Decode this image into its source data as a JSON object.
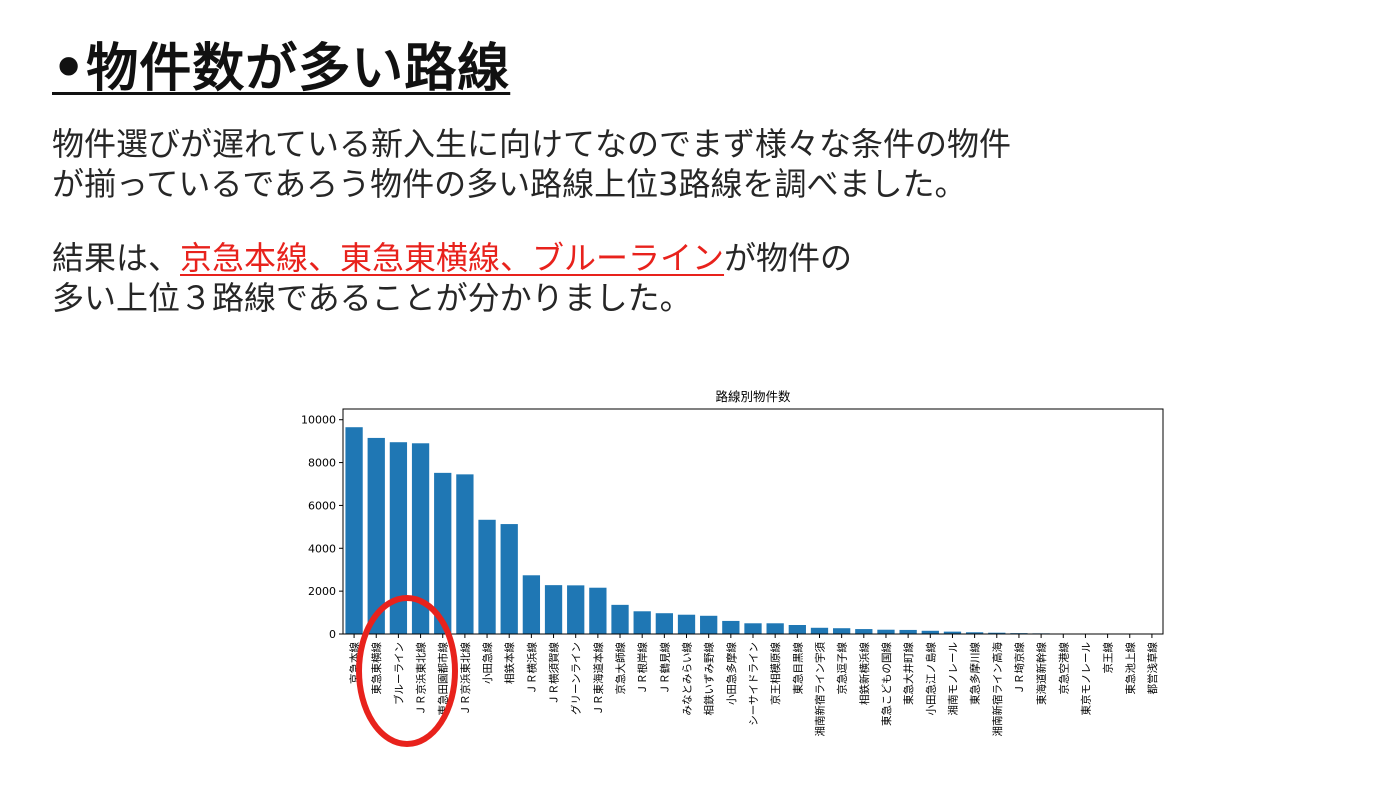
{
  "slide": {
    "title": "•物件数が多い路線",
    "paragraph1": {
      "line1": "物件選びが遅れている新入生に向けてなのでまず様々な条件の物件",
      "line2": "が揃っているであろう物件の多い路線上位3路線を調べました。"
    },
    "paragraph2": {
      "prefix": "結果は、",
      "highlight": "京急本線、東急東横線、ブルーライン",
      "suffix": "が物件の",
      "line2": "多い上位３路線であることが分かりました。"
    },
    "colors": {
      "highlight": "#e8221c",
      "bar": "#1f77b4",
      "circle": "#e8221c"
    }
  },
  "chart_data": {
    "type": "bar",
    "title": "路線別物件数",
    "xlabel": "",
    "ylabel": "",
    "ylim": [
      0,
      10000
    ],
    "yticks": [
      0,
      2000,
      4000,
      6000,
      8000,
      10000
    ],
    "grid": false,
    "categories": [
      "京急本線",
      "東急東横線",
      "ブルーライン",
      "ＪＲ京浜東北線",
      "東急田園都市線",
      "ＪＲ京浜東北線",
      "小田急線",
      "相鉄本線",
      "ＪＲ横浜線",
      "ＪＲ横須賀線",
      "グリーンライン",
      "ＪＲ東海道本線",
      "京急大師線",
      "ＪＲ根岸線",
      "ＪＲ鶴見線",
      "みなとみらい線",
      "相鉄いずみ野線",
      "小田急多摩線",
      "シーサイドライン",
      "京王相模原線",
      "東急目黒線",
      "湘南新宿ライン宇須",
      "京急逗子線",
      "相鉄新横浜線",
      "東急こどもの国線",
      "東急大井町線",
      "小田急江ノ島線",
      "湘南モノレール",
      "東急多摩川線",
      "湘南新宿ライン高海",
      "ＪＲ埼京線",
      "東海道新幹線",
      "京急空港線",
      "東京モノレール",
      "京王線",
      "東急池上線",
      "都営浅草線"
    ],
    "values": [
      9650,
      9150,
      8950,
      8900,
      7520,
      7450,
      5330,
      5130,
      2740,
      2280,
      2270,
      2160,
      1360,
      1060,
      970,
      900,
      850,
      610,
      500,
      500,
      420,
      290,
      270,
      230,
      200,
      190,
      150,
      110,
      80,
      60,
      40,
      30,
      15,
      10,
      8,
      6,
      5
    ],
    "annotation": {
      "shape": "ellipse",
      "color": "#e8221c",
      "marks": "top-3"
    }
  }
}
